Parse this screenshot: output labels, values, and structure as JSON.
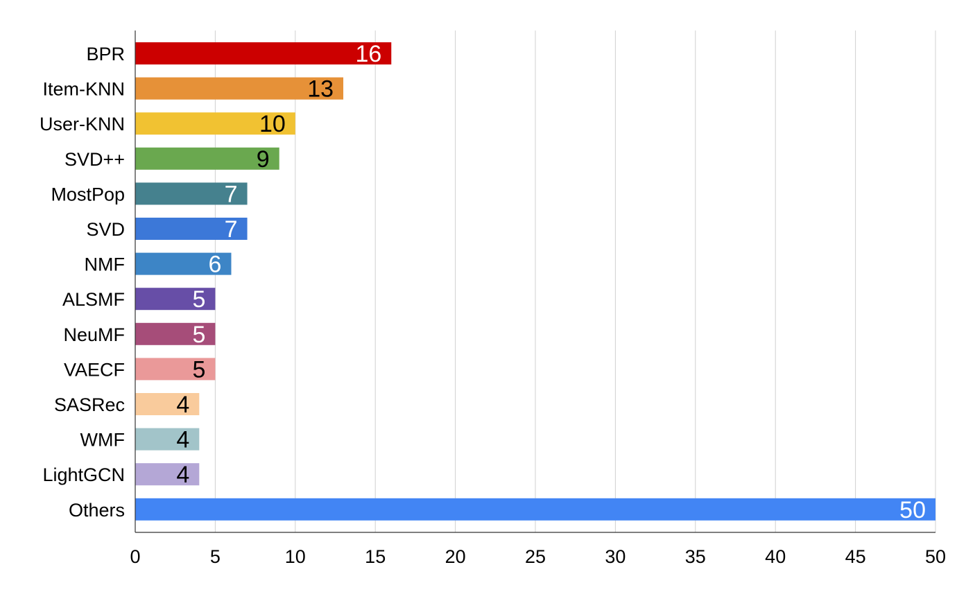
{
  "chart_data": {
    "type": "bar",
    "orientation": "horizontal",
    "title": "",
    "xlabel": "",
    "ylabel": "",
    "xlim": [
      0,
      50
    ],
    "x_ticks": [
      0,
      5,
      10,
      15,
      20,
      25,
      30,
      35,
      40,
      45,
      50
    ],
    "grid": "vertical",
    "legend": "none",
    "bars": [
      {
        "label": "BPR",
        "value": 16,
        "color": "#cc0000",
        "label_color": "#ffffff"
      },
      {
        "label": "Item-KNN",
        "value": 13,
        "color": "#e69138",
        "label_color": "#000000"
      },
      {
        "label": "User-KNN",
        "value": 10,
        "color": "#f1c232",
        "label_color": "#000000"
      },
      {
        "label": "SVD++",
        "value": 9,
        "color": "#6aa84f",
        "label_color": "#000000"
      },
      {
        "label": "MostPop",
        "value": 7,
        "color": "#45818e",
        "label_color": "#ffffff"
      },
      {
        "label": "SVD",
        "value": 7,
        "color": "#3c78d8",
        "label_color": "#ffffff"
      },
      {
        "label": "NMF",
        "value": 6,
        "color": "#3d85c6",
        "label_color": "#ffffff"
      },
      {
        "label": "ALSMF",
        "value": 5,
        "color": "#674ea7",
        "label_color": "#ffffff"
      },
      {
        "label": "NeuMF",
        "value": 5,
        "color": "#a64d79",
        "label_color": "#ffffff"
      },
      {
        "label": "VAECF",
        "value": 5,
        "color": "#ea9999",
        "label_color": "#000000"
      },
      {
        "label": "SASRec",
        "value": 4,
        "color": "#f9cb9c",
        "label_color": "#000000"
      },
      {
        "label": "WMF",
        "value": 4,
        "color": "#a2c4c9",
        "label_color": "#000000"
      },
      {
        "label": "LightGCN",
        "value": 4,
        "color": "#b4a7d6",
        "label_color": "#000000"
      },
      {
        "label": "Others",
        "value": 50,
        "color": "#4285f4",
        "label_color": "#ffffff"
      }
    ]
  }
}
